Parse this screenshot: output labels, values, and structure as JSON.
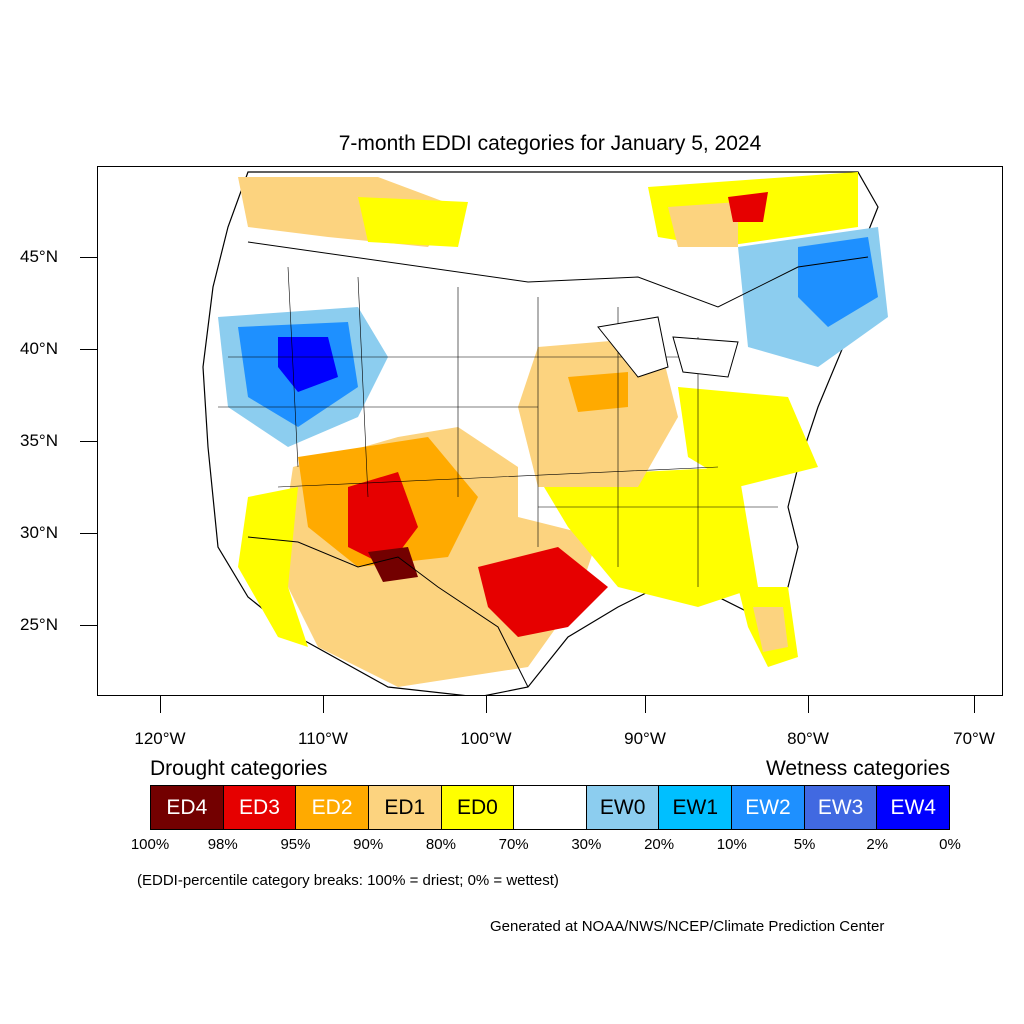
{
  "title": "7-month EDDI categories for January 5, 2024",
  "map": {
    "lat_labels": [
      "45°N",
      "40°N",
      "35°N",
      "30°N",
      "25°N"
    ],
    "lon_labels": [
      "120°W",
      "110°W",
      "100°W",
      "90°W",
      "80°W",
      "70°W"
    ]
  },
  "legend": {
    "drought_heading": "Drought categories",
    "wetness_heading": "Wetness categories",
    "categories": [
      {
        "label": "ED4",
        "color": "#730000",
        "text_color": "#ffffff"
      },
      {
        "label": "ED3",
        "color": "#e60000",
        "text_color": "#ffffff"
      },
      {
        "label": "ED2",
        "color": "#ffaa00",
        "text_color": "#ffffff"
      },
      {
        "label": "ED1",
        "color": "#fcd37f",
        "text_color": "#000000"
      },
      {
        "label": "ED0",
        "color": "#ffff00",
        "text_color": "#000000"
      },
      {
        "label": "",
        "color": "#ffffff",
        "text_color": "#000000"
      },
      {
        "label": "EW0",
        "color": "#8ccdef",
        "text_color": "#000000"
      },
      {
        "label": "EW1",
        "color": "#00bfff",
        "text_color": "#000000"
      },
      {
        "label": "EW2",
        "color": "#1e90ff",
        "text_color": "#ffffff"
      },
      {
        "label": "EW3",
        "color": "#4169e1",
        "text_color": "#ffffff"
      },
      {
        "label": "EW4",
        "color": "#0000ff",
        "text_color": "#ffffff"
      }
    ],
    "breaks": [
      "100%",
      "98%",
      "95%",
      "90%",
      "80%",
      "70%",
      "30%",
      "20%",
      "10%",
      "5%",
      "2%",
      "0%"
    ]
  },
  "note": "(EDDI-percentile category breaks: 100% = driest; 0% = wettest)",
  "credit": "Generated at NOAA/NWS/NCEP/Climate Prediction Center"
}
